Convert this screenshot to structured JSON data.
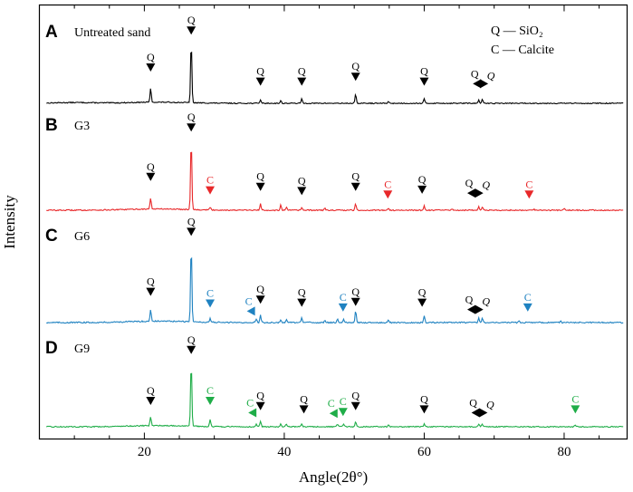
{
  "chart_data": {
    "type": "line",
    "xlabel": "Angle(2θ°)",
    "ylabel": "Intensity",
    "xlim": [
      5,
      89
    ],
    "xticks": [
      20,
      40,
      60,
      80
    ],
    "legend": [
      {
        "symbol": "Q",
        "name": "SiO2"
      },
      {
        "symbol": "C",
        "name": "Calcite"
      }
    ],
    "legend_text": {
      "q": "Q — SiO₂",
      "c": "C — Calcite"
    },
    "panels": [
      {
        "letter": "A",
        "label": "Untreated sand",
        "color": "#000000",
        "peaks": [
          {
            "x": 20.9,
            "h": 0.22
          },
          {
            "x": 26.7,
            "h": 1.0
          },
          {
            "x": 36.6,
            "h": 0.06
          },
          {
            "x": 39.5,
            "h": 0.04
          },
          {
            "x": 42.5,
            "h": 0.07
          },
          {
            "x": 50.2,
            "h": 0.14
          },
          {
            "x": 54.9,
            "h": 0.03
          },
          {
            "x": 60.0,
            "h": 0.07
          },
          {
            "x": 67.8,
            "h": 0.05
          },
          {
            "x": 68.3,
            "h": 0.06
          }
        ],
        "markers": [
          {
            "x": 20.9,
            "label": "Q",
            "dir": "down",
            "level": 0.5
          },
          {
            "x": 26.7,
            "label": "Q",
            "dir": "down",
            "level": 1.1
          },
          {
            "x": 36.6,
            "label": "Q",
            "dir": "down",
            "level": 0.27
          },
          {
            "x": 42.5,
            "label": "Q",
            "dir": "down",
            "level": 0.27
          },
          {
            "x": 50.2,
            "label": "Q",
            "dir": "down",
            "level": 0.35
          },
          {
            "x": 60.0,
            "label": "Q",
            "dir": "down",
            "level": 0.27
          },
          {
            "x": 67.6,
            "label": "Q",
            "dir": "left",
            "level": 0.26
          },
          {
            "x": 68.5,
            "label": "Q",
            "dir": "right",
            "level": 0.26
          }
        ]
      },
      {
        "letter": "B",
        "label": "G3",
        "color": "#e8282a",
        "peaks": [
          {
            "x": 20.9,
            "h": 0.15
          },
          {
            "x": 26.7,
            "h": 1.0
          },
          {
            "x": 29.4,
            "h": 0.04
          },
          {
            "x": 36.6,
            "h": 0.09
          },
          {
            "x": 39.5,
            "h": 0.07
          },
          {
            "x": 40.3,
            "h": 0.04
          },
          {
            "x": 42.5,
            "h": 0.04
          },
          {
            "x": 45.8,
            "h": 0.03
          },
          {
            "x": 50.2,
            "h": 0.09
          },
          {
            "x": 54.9,
            "h": 0.03
          },
          {
            "x": 60.0,
            "h": 0.06
          },
          {
            "x": 64.0,
            "h": 0.02
          },
          {
            "x": 67.8,
            "h": 0.05
          },
          {
            "x": 68.3,
            "h": 0.05
          },
          {
            "x": 75.7,
            "h": 0.02
          },
          {
            "x": 80.0,
            "h": 0.02
          }
        ],
        "markers": [
          {
            "x": 20.9,
            "label": "Q",
            "dir": "down",
            "level": 0.4
          },
          {
            "x": 26.7,
            "label": "Q",
            "dir": "down",
            "level": 1.1
          },
          {
            "x": 29.4,
            "label": "C",
            "dir": "down",
            "level": 0.21
          },
          {
            "x": 36.6,
            "label": "Q",
            "dir": "down",
            "level": 0.26
          },
          {
            "x": 42.5,
            "label": "Q",
            "dir": "down",
            "level": 0.2
          },
          {
            "x": 50.2,
            "label": "Q",
            "dir": "down",
            "level": 0.26
          },
          {
            "x": 54.8,
            "label": "C",
            "dir": "down",
            "level": 0.15
          },
          {
            "x": 59.7,
            "label": "Q",
            "dir": "down",
            "level": 0.22
          },
          {
            "x": 66.8,
            "label": "Q",
            "dir": "left",
            "level": 0.19
          },
          {
            "x": 67.8,
            "label": "Q",
            "dir": "right",
            "level": 0.19
          },
          {
            "x": 75.0,
            "label": "C",
            "dir": "down",
            "level": 0.15
          }
        ]
      },
      {
        "letter": "C",
        "label": "G6",
        "color": "#1f82c1",
        "peaks": [
          {
            "x": 20.9,
            "h": 0.15
          },
          {
            "x": 26.7,
            "h": 1.0
          },
          {
            "x": 29.4,
            "h": 0.05
          },
          {
            "x": 36.0,
            "h": 0.05
          },
          {
            "x": 36.6,
            "h": 0.1
          },
          {
            "x": 39.5,
            "h": 0.04
          },
          {
            "x": 40.3,
            "h": 0.04
          },
          {
            "x": 42.5,
            "h": 0.06
          },
          {
            "x": 45.8,
            "h": 0.03
          },
          {
            "x": 47.6,
            "h": 0.05
          },
          {
            "x": 48.5,
            "h": 0.04
          },
          {
            "x": 50.2,
            "h": 0.15
          },
          {
            "x": 54.9,
            "h": 0.03
          },
          {
            "x": 60.0,
            "h": 0.08
          },
          {
            "x": 67.8,
            "h": 0.06
          },
          {
            "x": 68.3,
            "h": 0.06
          },
          {
            "x": 73.5,
            "h": 0.02
          },
          {
            "x": 79.5,
            "h": 0.02
          }
        ],
        "markers": [
          {
            "x": 20.9,
            "label": "Q",
            "dir": "down",
            "level": 0.33
          },
          {
            "x": 26.7,
            "label": "Q",
            "dir": "down",
            "level": 1.1
          },
          {
            "x": 29.4,
            "label": "C",
            "dir": "down",
            "level": 0.18
          },
          {
            "x": 35.3,
            "label": "C",
            "dir": "left",
            "level": 0.1
          },
          {
            "x": 36.6,
            "label": "Q",
            "dir": "down",
            "level": 0.23
          },
          {
            "x": 42.5,
            "label": "Q",
            "dir": "down",
            "level": 0.19
          },
          {
            "x": 48.4,
            "label": "C",
            "dir": "down",
            "level": 0.13
          },
          {
            "x": 50.2,
            "label": "Q",
            "dir": "down",
            "level": 0.2
          },
          {
            "x": 59.7,
            "label": "Q",
            "dir": "down",
            "level": 0.19
          },
          {
            "x": 66.8,
            "label": "Q",
            "dir": "left",
            "level": 0.12
          },
          {
            "x": 67.8,
            "label": "Q",
            "dir": "right",
            "level": 0.12
          },
          {
            "x": 74.8,
            "label": "C",
            "dir": "down",
            "level": 0.13
          }
        ]
      },
      {
        "letter": "D",
        "label": "G9",
        "color": "#1fad48",
        "peaks": [
          {
            "x": 20.9,
            "h": 0.14
          },
          {
            "x": 26.7,
            "h": 1.0
          },
          {
            "x": 29.4,
            "h": 0.11
          },
          {
            "x": 36.0,
            "h": 0.04
          },
          {
            "x": 36.6,
            "h": 0.09
          },
          {
            "x": 39.5,
            "h": 0.05
          },
          {
            "x": 40.3,
            "h": 0.04
          },
          {
            "x": 42.5,
            "h": 0.05
          },
          {
            "x": 47.6,
            "h": 0.04
          },
          {
            "x": 48.5,
            "h": 0.04
          },
          {
            "x": 50.2,
            "h": 0.08
          },
          {
            "x": 54.9,
            "h": 0.03
          },
          {
            "x": 60.0,
            "h": 0.04
          },
          {
            "x": 67.8,
            "h": 0.04
          },
          {
            "x": 68.3,
            "h": 0.04
          },
          {
            "x": 81.6,
            "h": 0.03
          }
        ],
        "markers": [
          {
            "x": 20.9,
            "label": "Q",
            "dir": "down",
            "level": 0.32
          },
          {
            "x": 26.7,
            "label": "Q",
            "dir": "down",
            "level": 1.1
          },
          {
            "x": 29.4,
            "label": "C",
            "dir": "down",
            "level": 0.32
          },
          {
            "x": 35.5,
            "label": "C",
            "dir": "left",
            "level": 0.16
          },
          {
            "x": 36.6,
            "label": "Q",
            "dir": "down",
            "level": 0.24
          },
          {
            "x": 42.8,
            "label": "Q",
            "dir": "down",
            "level": 0.19
          },
          {
            "x": 47.1,
            "label": "C",
            "dir": "left",
            "level": 0.15
          },
          {
            "x": 48.4,
            "label": "C",
            "dir": "down",
            "level": 0.15
          },
          {
            "x": 50.2,
            "label": "Q",
            "dir": "down",
            "level": 0.24
          },
          {
            "x": 60.0,
            "label": "Q",
            "dir": "down",
            "level": 0.19
          },
          {
            "x": 67.4,
            "label": "Q",
            "dir": "left",
            "level": 0.16
          },
          {
            "x": 68.4,
            "label": "Q",
            "dir": "right",
            "level": 0.16
          },
          {
            "x": 81.6,
            "label": "C",
            "dir": "down",
            "level": 0.19
          }
        ]
      }
    ]
  }
}
